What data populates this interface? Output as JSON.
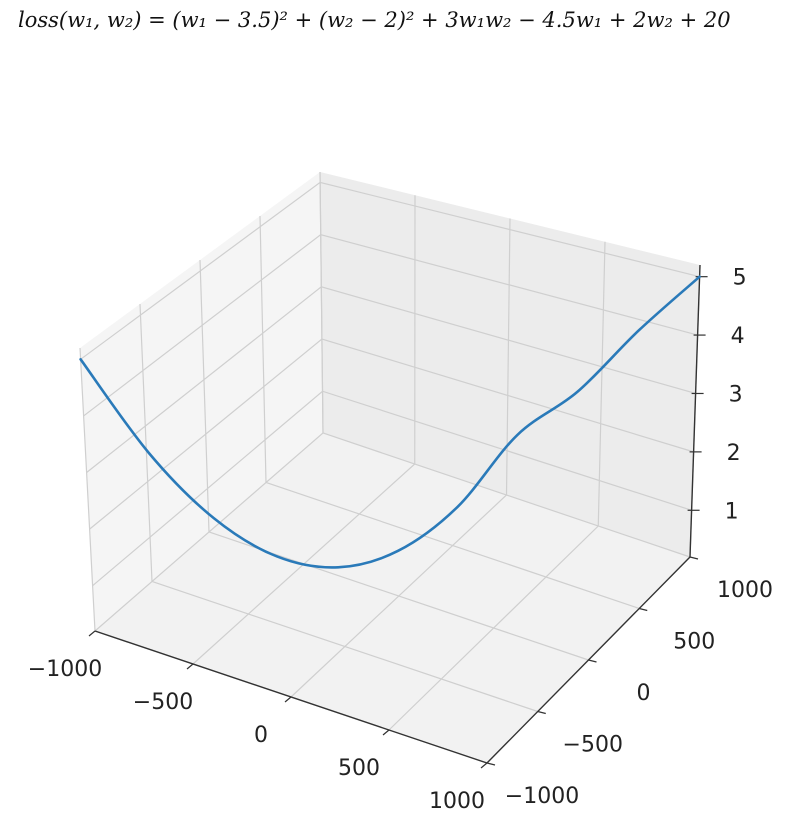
{
  "header": {
    "formula": "loss(w₁, w₂) = (w₁ − 3.5)² + (w₂ − 2)² + 3w₁w₂ − 4.5w₁ + 2w₂ + 20"
  },
  "chart_data": {
    "type": "line",
    "projection": "3d",
    "title": "",
    "xlabel": "",
    "ylabel": "",
    "zlabel": "",
    "xlim": [
      -1000,
      1000
    ],
    "ylim": [
      -1000,
      1000
    ],
    "zlim": [
      0.2,
      5.2
    ],
    "xticks": [
      -1000,
      -500,
      0,
      500,
      1000
    ],
    "yticks": [
      -1000,
      -500,
      0,
      500,
      1000
    ],
    "zticks": [
      1,
      2,
      3,
      4,
      5
    ],
    "xtick_labels": [
      "−1000",
      "−500",
      "0",
      "500",
      "1000"
    ],
    "ytick_labels": [
      "−1000",
      "−500",
      "0",
      "500",
      "1000"
    ],
    "ztick_labels": [
      "1",
      "2",
      "3",
      "4",
      "5"
    ],
    "grid": true,
    "series": [
      {
        "color": "#2a7ab9",
        "x": [
          -1000,
          -800,
          -600,
          -400,
          -200,
          0,
          200,
          400,
          600,
          800,
          1000
        ],
        "y": [
          -1000,
          -800,
          -600,
          -400,
          -200,
          0,
          200,
          400,
          600,
          800,
          1000
        ],
        "z": [
          5.0,
          3.24,
          1.96,
          1.16,
          0.84,
          1.0,
          1.64,
          2.76,
          3.36,
          4.25,
          5.0
        ]
      }
    ]
  }
}
